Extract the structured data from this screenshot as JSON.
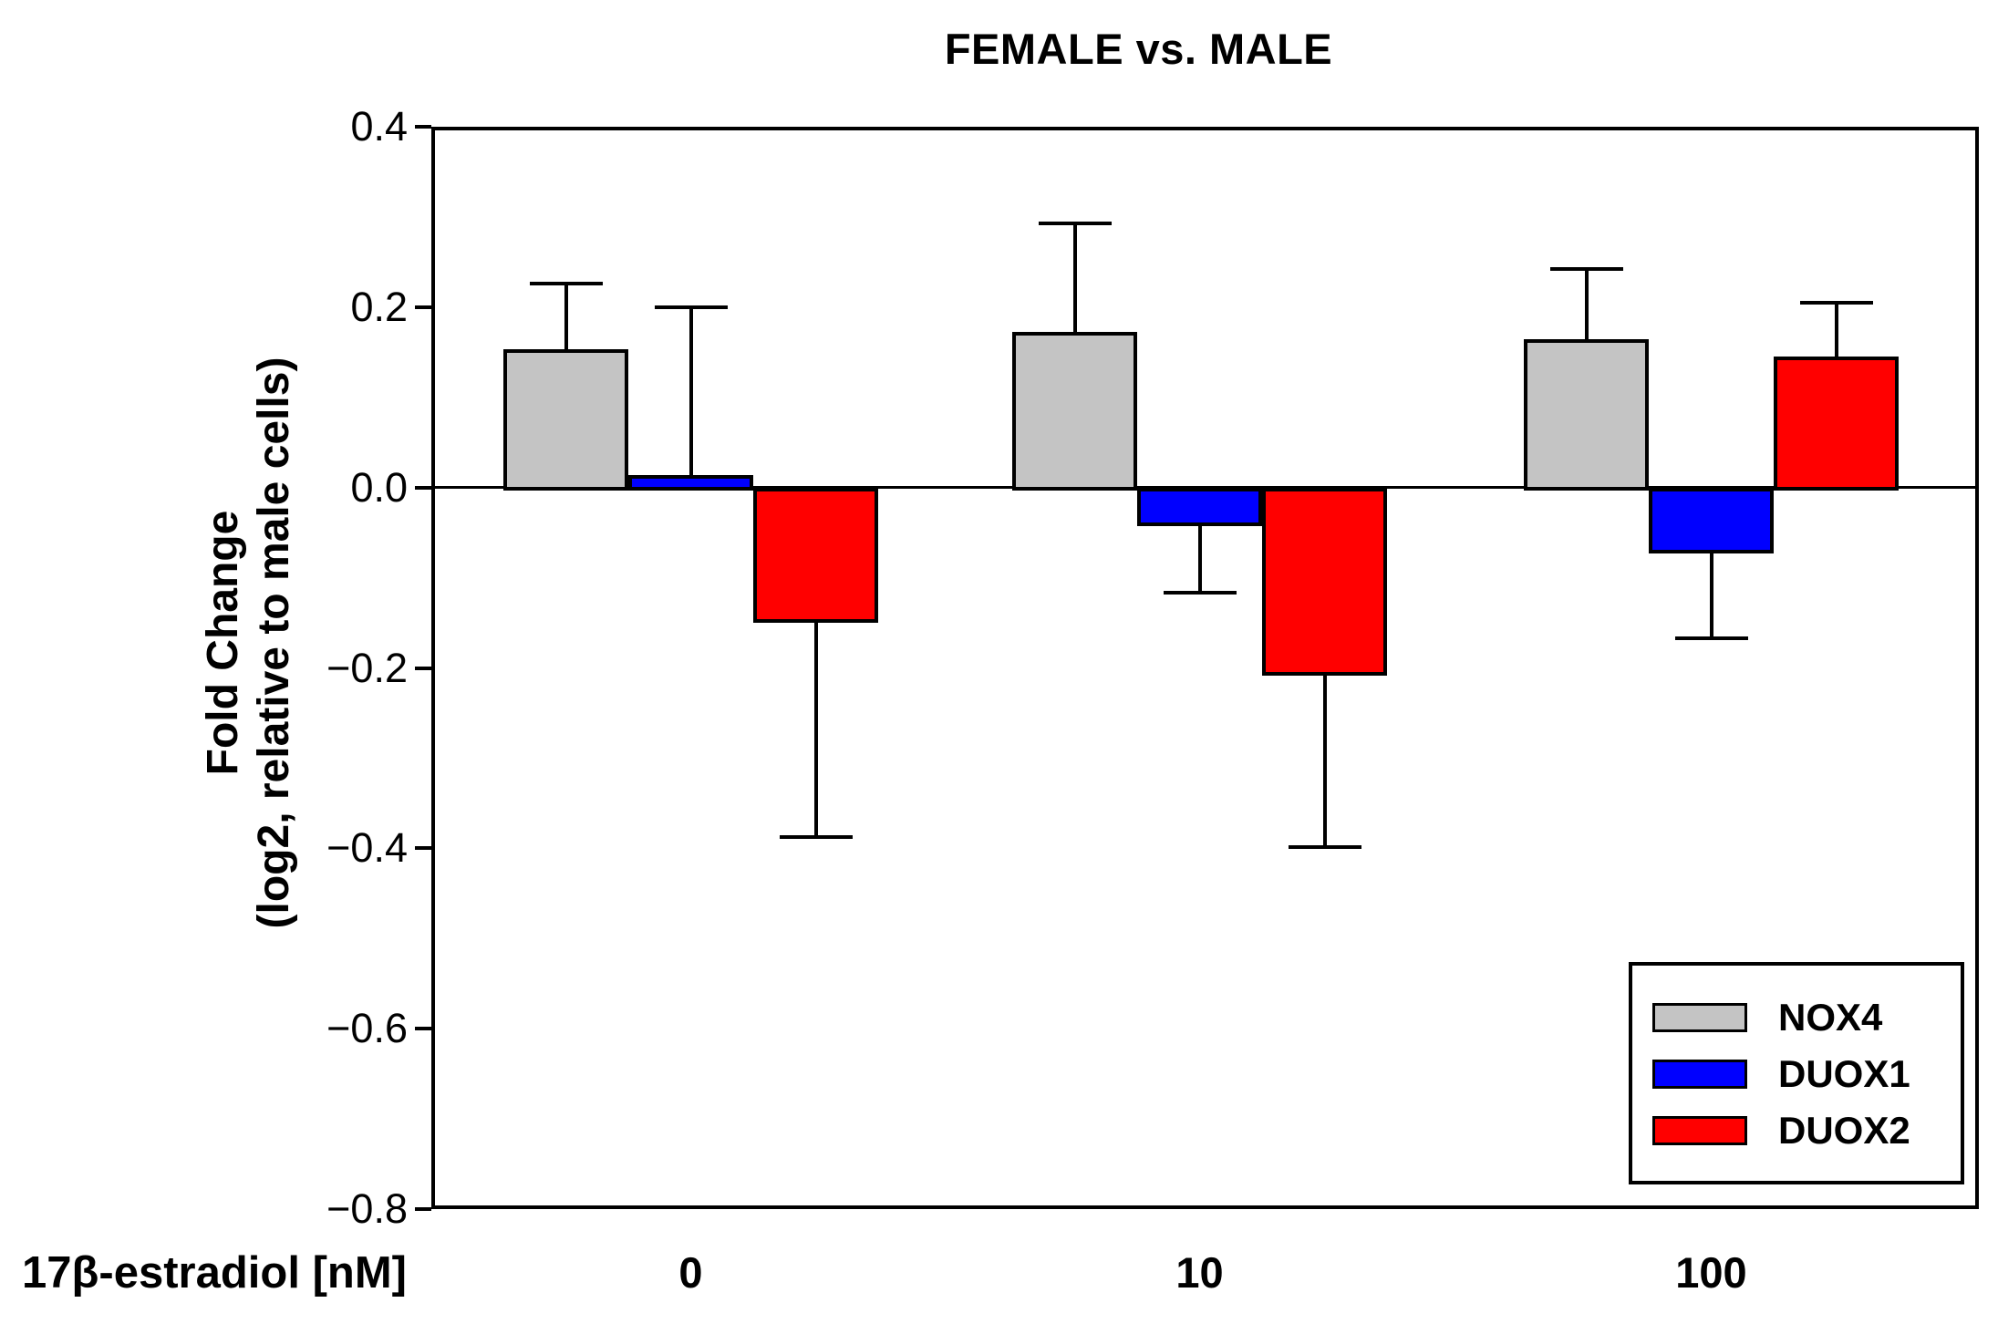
{
  "title": "FEMALE vs. MALE",
  "chart_data": {
    "type": "bar",
    "title": "FEMALE vs. MALE",
    "xlabel": "17β-estradiol [nM]",
    "ylabel_line1": "Fold Change",
    "ylabel_line2": "(log2, relative to male cells)",
    "categories": [
      "0",
      "10",
      "100"
    ],
    "series": [
      {
        "name": "NOX4",
        "color": "#C4C4C4",
        "values": [
          0.153,
          0.173,
          0.164
        ],
        "errors": [
          0.073,
          0.12,
          0.078
        ]
      },
      {
        "name": "DUOX1",
        "color": "#0000FF",
        "values": [
          0.014,
          -0.04,
          -0.07
        ],
        "errors": [
          0.186,
          0.077,
          0.097
        ]
      },
      {
        "name": "DUOX2",
        "color": "#FF0000",
        "values": [
          -0.147,
          -0.206,
          0.145
        ],
        "errors": [
          0.241,
          0.193,
          0.06
        ]
      }
    ],
    "error_bars": "one-sided, away from zero, with caps",
    "ylim": [
      -0.8,
      0.4
    ],
    "ytick_values": [
      0.4,
      0.2,
      0.0,
      -0.2,
      -0.4,
      -0.6,
      -0.8
    ],
    "ytick_labels": [
      "0.4",
      "0.2",
      "0.0",
      "−0.2",
      "−0.4",
      "−0.6",
      "−0.8"
    ],
    "grid": false,
    "plot_frame": "full box",
    "zero_line": true,
    "legend_position": "lower right"
  }
}
